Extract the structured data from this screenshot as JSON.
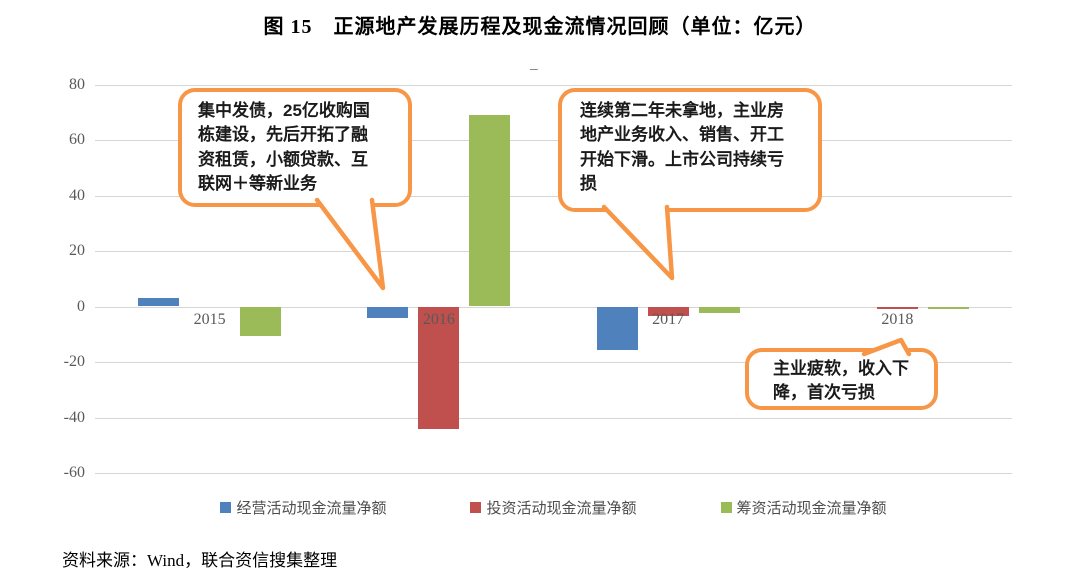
{
  "figure_title": "图 15　正源地产发展历程及现金流情况回顾（单位：亿元）",
  "title_placeholder_dash": "–",
  "source_note": "资料来源：Wind，联合资信搜集整理",
  "chart_data": {
    "type": "bar",
    "title": "正源地产发展历程及现金流情况回顾",
    "unit": "亿元",
    "categories": [
      "2015",
      "2016",
      "2017",
      "2018"
    ],
    "series": [
      {
        "name": "经营活动现金流量净额",
        "color": "#4F81BD",
        "values": [
          3,
          -4,
          -15.5,
          0
        ]
      },
      {
        "name": "投资活动现金流量净额",
        "color": "#C0504D",
        "values": [
          0,
          -44,
          -3.5,
          -1
        ]
      },
      {
        "name": "筹资活动现金流量净额",
        "color": "#9BBB59",
        "values": [
          -10.5,
          69,
          -2.5,
          -1
        ]
      }
    ],
    "ylim": [
      -60,
      80
    ],
    "yticks": [
      80,
      60,
      40,
      20,
      0,
      -20,
      -40,
      -60
    ],
    "grid": true,
    "legend_position": "bottom"
  },
  "callouts": [
    {
      "id": "callout-2016",
      "text": "集中发债，25亿收购国栋建设，先后开拓了融资租赁，小额贷款、互联网＋等新业务"
    },
    {
      "id": "callout-2017",
      "text": "连续第二年未拿地，主业房地产业务收入、销售、开工开始下滑。上市公司持续亏损"
    },
    {
      "id": "callout-2018",
      "text": "主业疲软，收入下降，首次亏损"
    }
  ],
  "colors": {
    "callout_border": "#F79646",
    "gridline": "#D6D6D6",
    "axis_text": "#595959"
  }
}
